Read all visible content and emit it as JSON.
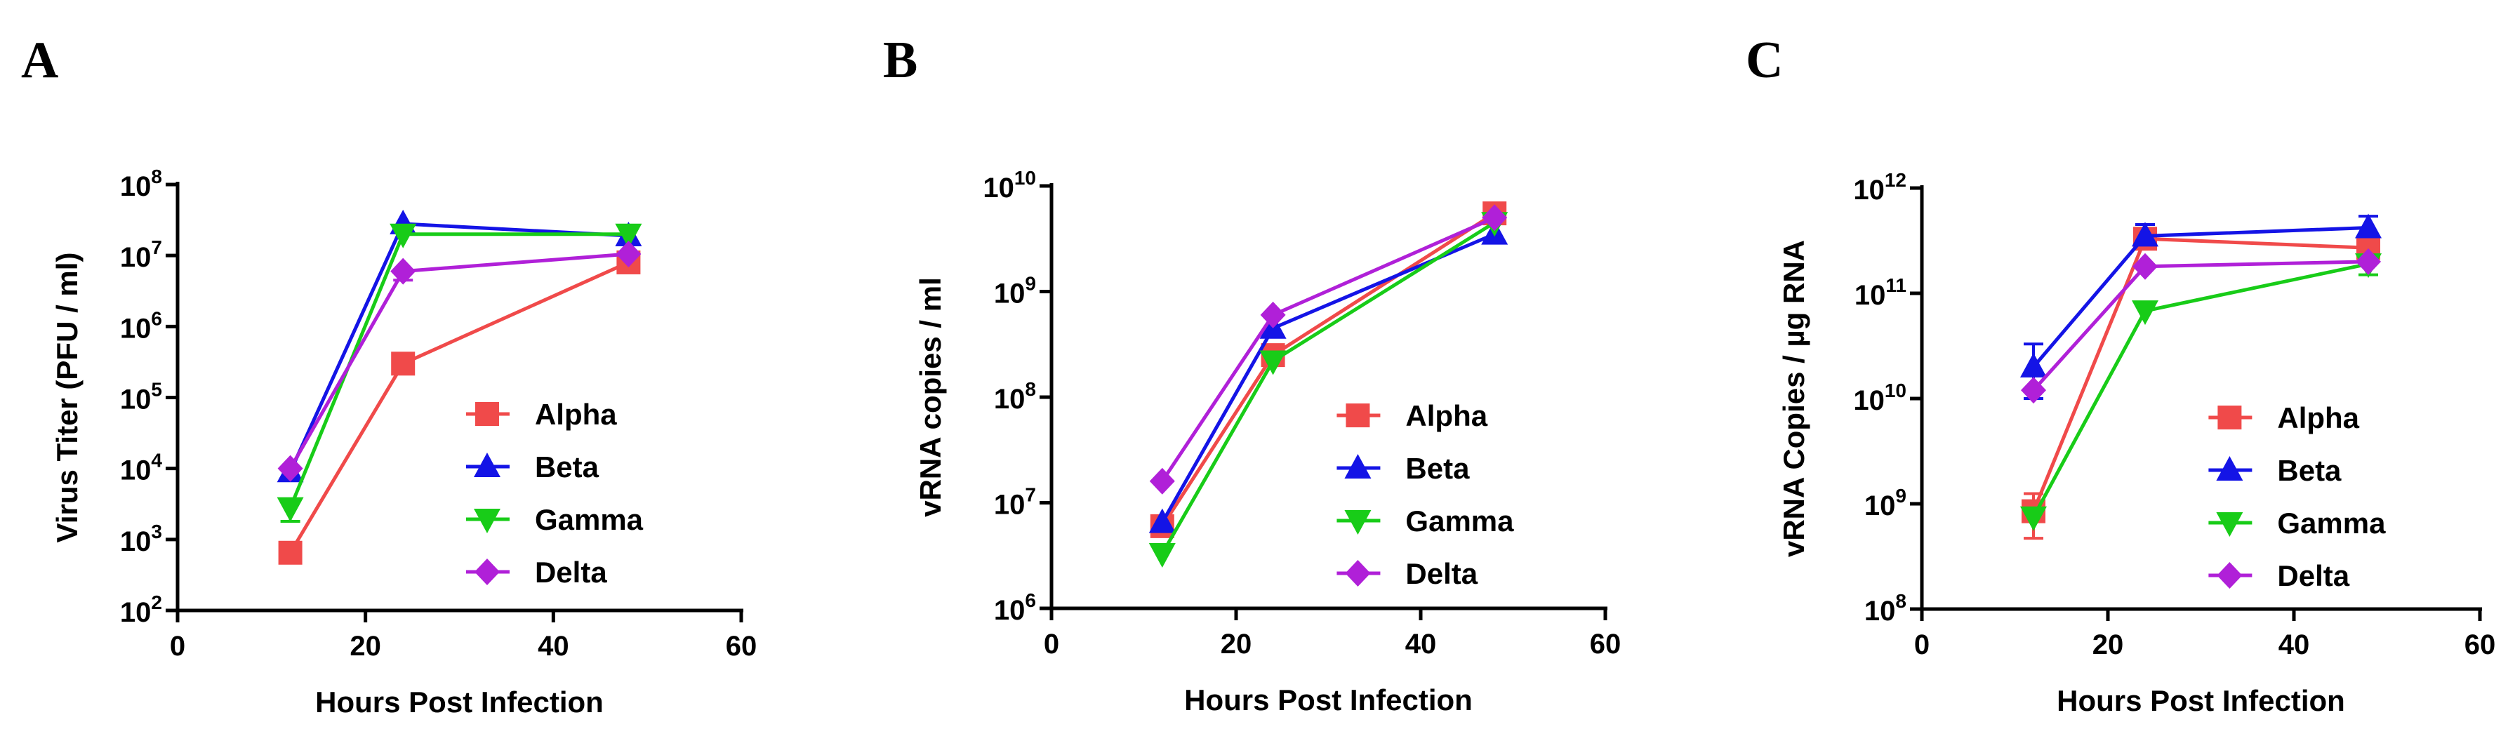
{
  "colors": {
    "Alpha": "#f04a4a",
    "Beta": "#1414e6",
    "Gamma": "#18cc18",
    "Delta": "#b020d8"
  },
  "chart_data": [
    {
      "panel_label": "A",
      "type": "line",
      "xlabel": "Hours Post Infection",
      "ylabel": "Virus Titer (PFU / ml)",
      "ylabel_html": "",
      "xlim": [
        0,
        60
      ],
      "xticks": [
        0,
        20,
        40,
        60
      ],
      "y_scale": "log",
      "ylim_exp": [
        2,
        8
      ],
      "legend_position": "lower-right",
      "x": [
        12,
        24,
        48
      ],
      "series": [
        {
          "name": "Alpha",
          "marker": "square",
          "values": [
            650,
            300000,
            8000000
          ],
          "err_low": [
            0,
            0,
            0
          ],
          "err_high": [
            0,
            0,
            0
          ]
        },
        {
          "name": "Beta",
          "marker": "triangle-up",
          "values": [
            9000,
            28000000,
            19000000
          ],
          "err_low": [
            0,
            0,
            0
          ],
          "err_high": [
            0,
            0,
            0
          ]
        },
        {
          "name": "Gamma",
          "marker": "triangle-down",
          "values": [
            2800,
            20000000,
            20000000
          ],
          "err_low": [
            1000,
            0,
            0
          ],
          "err_high": [
            0,
            0,
            0
          ]
        },
        {
          "name": "Delta",
          "marker": "diamond",
          "values": [
            10000,
            6000000,
            10500000
          ],
          "err_low": [
            0,
            1500000,
            0
          ],
          "err_high": [
            0,
            0,
            0
          ]
        }
      ]
    },
    {
      "panel_label": "B",
      "type": "line",
      "xlabel": "Hours Post Infection",
      "ylabel": "vRNA copies / ml",
      "ylabel_html": "",
      "xlim": [
        0,
        60
      ],
      "xticks": [
        0,
        20,
        40,
        60
      ],
      "y_scale": "log",
      "ylim_exp": [
        6,
        10
      ],
      "legend_position": "lower-right",
      "x": [
        12,
        24,
        48
      ],
      "series": [
        {
          "name": "Alpha",
          "marker": "square",
          "values": [
            6000000,
            250000000,
            5500000000
          ],
          "err_low": [
            0,
            0,
            0
          ],
          "err_high": [
            0,
            0,
            0
          ]
        },
        {
          "name": "Beta",
          "marker": "triangle-up",
          "values": [
            6500000,
            450000000,
            3500000000
          ],
          "err_low": [
            0,
            0,
            0
          ],
          "err_high": [
            0,
            0,
            0
          ]
        },
        {
          "name": "Gamma",
          "marker": "triangle-down",
          "values": [
            3300000,
            220000000,
            4500000000
          ],
          "err_low": [
            0,
            0,
            0
          ],
          "err_high": [
            0,
            0,
            0
          ]
        },
        {
          "name": "Delta",
          "marker": "diamond",
          "values": [
            16000000,
            600000000,
            5000000000
          ],
          "err_low": [
            0,
            0,
            0
          ],
          "err_high": [
            0,
            0,
            0
          ]
        }
      ]
    },
    {
      "panel_label": "C",
      "type": "line",
      "xlabel": "Hours Post Infection",
      "ylabel": "vRNA Copies / µg RNA",
      "ylabel_html": "",
      "xlim": [
        0,
        60
      ],
      "xticks": [
        0,
        20,
        40,
        60
      ],
      "y_scale": "log",
      "ylim_exp": [
        8,
        12
      ],
      "legend_position": "lower-right",
      "x": [
        12,
        24,
        48
      ],
      "series": [
        {
          "name": "Alpha",
          "marker": "square",
          "values": [
            850000000,
            330000000000,
            270000000000
          ],
          "err_low": [
            380000000,
            0,
            0
          ],
          "err_high": [
            400000000,
            0,
            0
          ]
        },
        {
          "name": "Beta",
          "marker": "triangle-up",
          "values": [
            20000000000,
            350000000000,
            420000000000
          ],
          "err_low": [
            10000000000,
            0,
            0
          ],
          "err_high": [
            13000000000,
            100000000000,
            120000000000
          ]
        },
        {
          "name": "Gamma",
          "marker": "triangle-down",
          "values": [
            750000000,
            68000000000,
            190000000000
          ],
          "err_low": [
            0,
            0,
            40000000000
          ],
          "err_high": [
            0,
            0,
            0
          ]
        },
        {
          "name": "Delta",
          "marker": "diamond",
          "values": [
            12000000000,
            180000000000,
            200000000000
          ],
          "err_low": [
            0,
            0,
            0
          ],
          "err_high": [
            0,
            0,
            0
          ]
        }
      ]
    }
  ]
}
